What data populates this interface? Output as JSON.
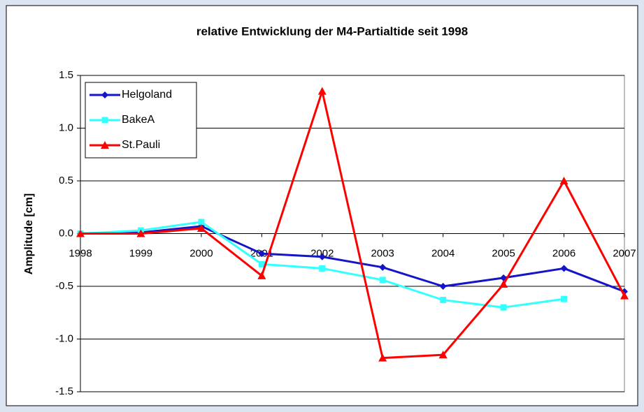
{
  "chart_data": {
    "type": "line",
    "title": "relative Entwicklung der M4-Partialtide seit 1998",
    "y_label": "Amplitude [cm]",
    "categories": [
      "1998",
      "1999",
      "2000",
      "2001",
      "2002",
      "2003",
      "2004",
      "2005",
      "2006",
      "2007"
    ],
    "series": [
      {
        "name": "Helgoland",
        "color": "#1414c8",
        "marker": "diamond",
        "values": [
          0.0,
          0.01,
          0.07,
          -0.19,
          -0.22,
          -0.32,
          -0.5,
          -0.42,
          -0.33,
          -0.55
        ]
      },
      {
        "name": "BakeA",
        "color": "#33ffff",
        "marker": "square",
        "values": [
          0.0,
          0.03,
          0.11,
          -0.29,
          -0.33,
          -0.44,
          -0.63,
          -0.7,
          -0.62,
          null
        ]
      },
      {
        "name": "St.Pauli",
        "color": "#ff0000",
        "marker": "triangle",
        "values": [
          0.0,
          0.0,
          0.05,
          -0.4,
          1.35,
          -1.18,
          -1.15,
          -0.48,
          0.5,
          -0.59
        ]
      }
    ],
    "ylim": [
      -1.5,
      1.5
    ],
    "yticks": [
      1.5,
      {
        "value": 1.0,
        "label": "1.0"
      },
      0.5,
      {
        "value": 0.0,
        "label": "0.0"
      },
      -0.5,
      {
        "value": -1.0,
        "label": "-1.0"
      },
      -1.5
    ],
    "grid": true,
    "legend": "top-left"
  }
}
